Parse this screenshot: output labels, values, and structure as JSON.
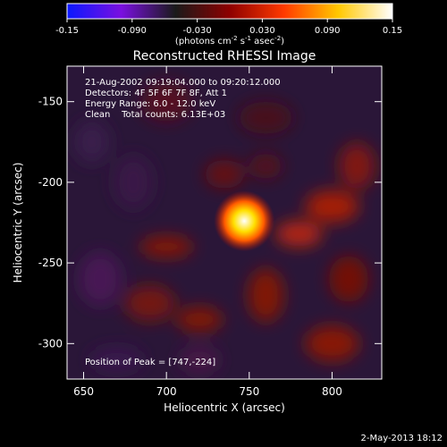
{
  "chart_data": {
    "type": "heatmap",
    "title": "Reconstructed RHESSI Image",
    "xlabel": "Heliocentric X (arcsec)",
    "ylabel": "Heliocentric Y (arcsec)",
    "xlim": [
      640,
      830
    ],
    "ylim": [
      -322,
      -128
    ],
    "x_ticks": [
      650,
      700,
      750,
      800
    ],
    "y_ticks": [
      -150,
      -200,
      -250,
      -300
    ],
    "colorbar": {
      "range": [
        -0.15,
        0.15
      ],
      "ticks": [
        -0.15,
        -0.09,
        -0.03,
        0.03,
        0.09,
        0.15
      ],
      "tick_labels": [
        "-0.15",
        "-0.090",
        "-0.030",
        "0.030",
        "0.090",
        "0.15"
      ],
      "label": "(photons cm-2 s-1 asec-2)",
      "colors": [
        "#0a18ff",
        "#7a10e0",
        "#1a1a1a",
        "#8e0000",
        "#ff3a00",
        "#ffc800",
        "#ffffff"
      ]
    },
    "annotations": [
      "21-Aug-2002 09:19:04.000 to 09:20:12.000",
      "Detectors: 4F 5F 6F 7F 8F, Att 1",
      "Energy Range: 6.0 - 12.0 keV",
      "Clean    Total counts: 6.13E+03"
    ],
    "peak_label": "Position of Peak = [747,-224]",
    "peak": [
      747,
      -224
    ],
    "timestamp": "2-May-2013 18:12"
  }
}
